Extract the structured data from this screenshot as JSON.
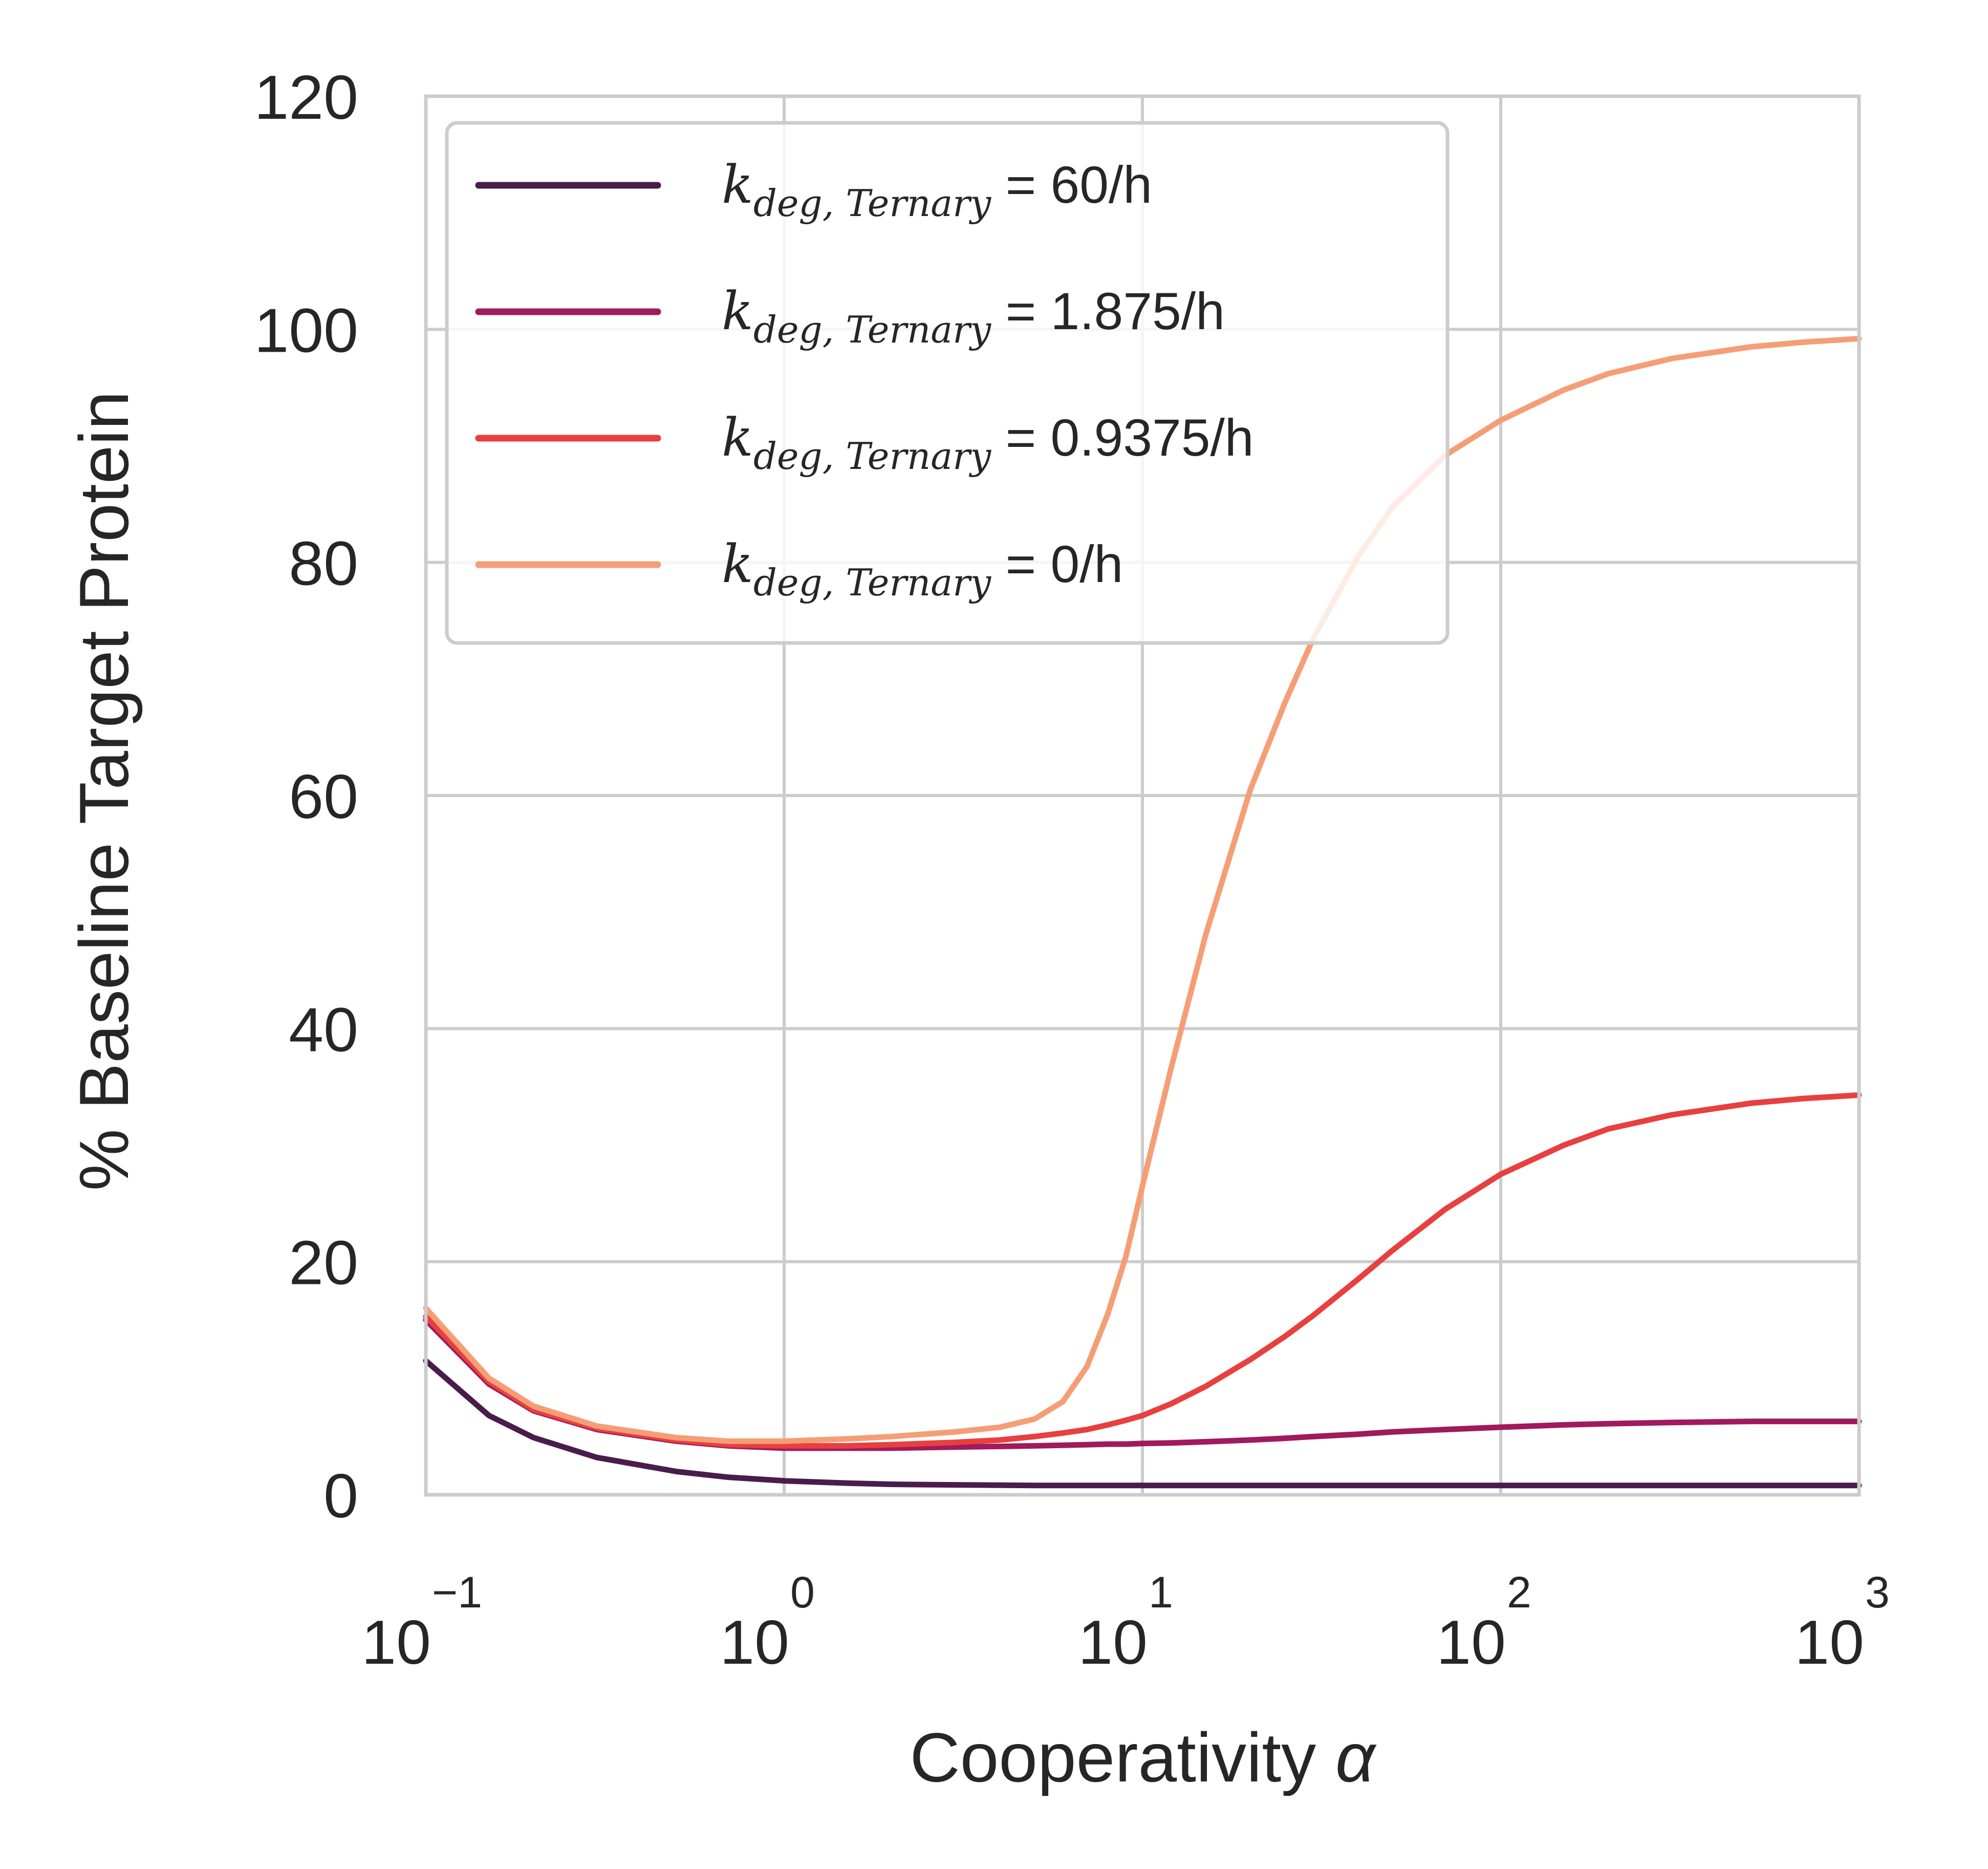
{
  "chart_data": {
    "type": "line",
    "title": "",
    "xlabel_text": "Cooperativity",
    "xlabel_symbol": "α",
    "ylabel": "% Baseline Target Protein",
    "xscale": "log",
    "xlim": [
      0.1,
      1000
    ],
    "ylim": [
      0,
      120
    ],
    "grid": true,
    "legend_position": "top-left",
    "x_ticks": [
      {
        "base": "10",
        "exp": "−1"
      },
      {
        "base": "10",
        "exp": "0"
      },
      {
        "base": "10",
        "exp": "1"
      },
      {
        "base": "10",
        "exp": "2"
      },
      {
        "base": "10",
        "exp": "3"
      }
    ],
    "y_ticks": [
      "0",
      "20",
      "40",
      "60",
      "80",
      "100",
      "120"
    ],
    "x": [
      0.1,
      0.15,
      0.2,
      0.3,
      0.5,
      0.7,
      1,
      1.5,
      2,
      3,
      4,
      5,
      6,
      7,
      8,
      9,
      10,
      12,
      15,
      20,
      25,
      30,
      40,
      50,
      70,
      100,
      150,
      200,
      300,
      500,
      700,
      1000
    ],
    "series": [
      {
        "name": "k_deg,Ternary = 60/h",
        "legend_main": "k",
        "legend_sub": "deg, Ternary",
        "legend_value": " = 60/h",
        "color": "#4a1c4c",
        "values": [
          11.5,
          6.8,
          4.9,
          3.2,
          2.0,
          1.5,
          1.2,
          1.0,
          0.9,
          0.85,
          0.82,
          0.8,
          0.8,
          0.8,
          0.8,
          0.8,
          0.8,
          0.8,
          0.8,
          0.8,
          0.8,
          0.8,
          0.8,
          0.8,
          0.8,
          0.8,
          0.8,
          0.8,
          0.8,
          0.8,
          0.8,
          0.8
        ]
      },
      {
        "name": "k_deg,Ternary = 1.875/h",
        "legend_main": "k",
        "legend_sub": "deg, Ternary",
        "legend_value": " = 1.875/h",
        "color": "#a11a5b",
        "values": [
          15.0,
          9.5,
          7.2,
          5.6,
          4.6,
          4.2,
          4.0,
          4.0,
          4.0,
          4.1,
          4.15,
          4.2,
          4.25,
          4.3,
          4.35,
          4.35,
          4.4,
          4.45,
          4.55,
          4.7,
          4.85,
          5.0,
          5.2,
          5.4,
          5.6,
          5.8,
          6.0,
          6.1,
          6.2,
          6.3,
          6.3,
          6.3
        ]
      },
      {
        "name": "k_deg,Ternary = 0.9375/h",
        "legend_main": "k",
        "legend_sub": "deg, Ternary",
        "legend_value": " = 0.9375/h",
        "color": "#e83f3f",
        "values": [
          15.3,
          9.7,
          7.3,
          5.7,
          4.7,
          4.3,
          4.2,
          4.2,
          4.3,
          4.5,
          4.7,
          5.0,
          5.3,
          5.6,
          6.0,
          6.4,
          6.8,
          7.8,
          9.3,
          11.6,
          13.6,
          15.4,
          18.5,
          21.0,
          24.5,
          27.5,
          30.0,
          31.4,
          32.6,
          33.6,
          34.0,
          34.3
        ]
      },
      {
        "name": "k_deg,Ternary = 0/h",
        "legend_main": "k",
        "legend_sub": "deg, Ternary",
        "legend_value": " = 0/h",
        "color": "#f59e76",
        "values": [
          16.0,
          10.0,
          7.6,
          5.9,
          4.9,
          4.6,
          4.6,
          4.8,
          5.0,
          5.4,
          5.8,
          6.5,
          8.0,
          11.0,
          15.5,
          20.5,
          26.5,
          36.5,
          48.0,
          60.5,
          68.0,
          73.5,
          80.5,
          84.8,
          89.2,
          92.2,
          94.8,
          96.2,
          97.5,
          98.5,
          98.9,
          99.2
        ]
      }
    ]
  }
}
